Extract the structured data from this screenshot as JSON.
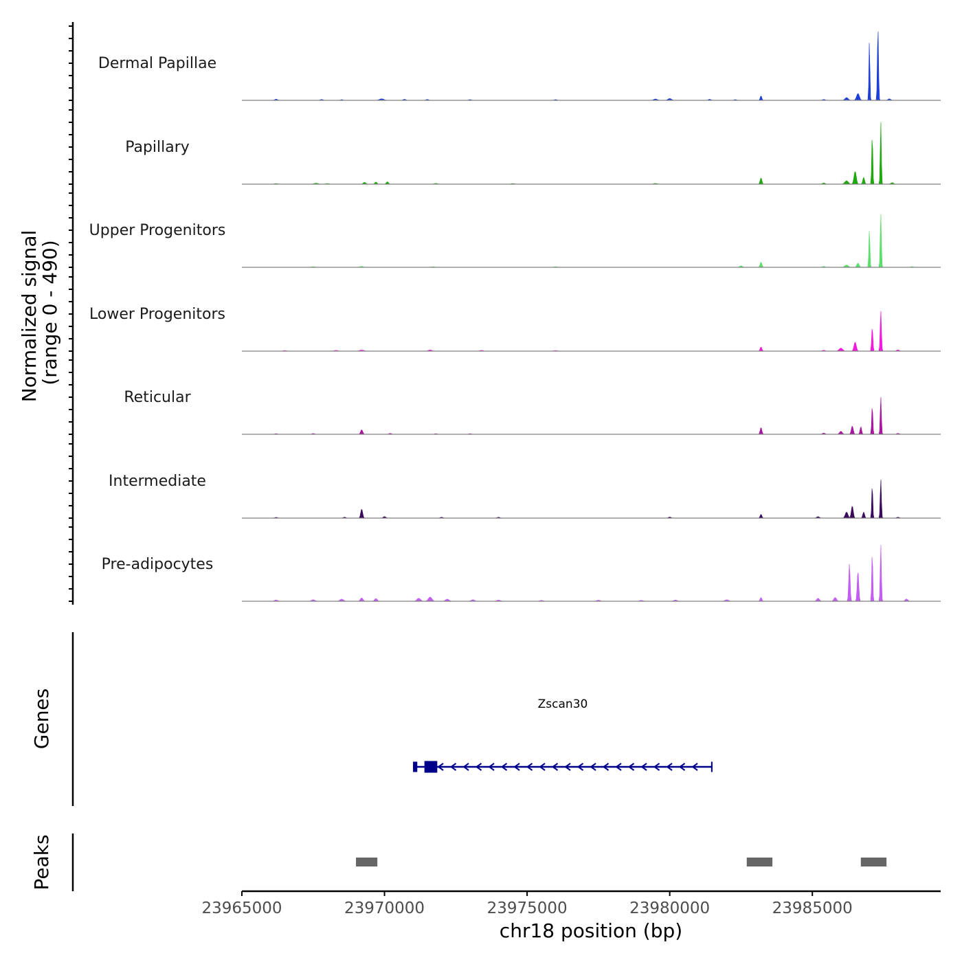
{
  "chart_data": {
    "type": "area",
    "title": "",
    "chromosome": "chr18",
    "xlabel": "chr18 position (bp)",
    "xlim": [
      23965000,
      23989500
    ],
    "x_ticks": [
      23965000,
      23970000,
      23975000,
      23980000,
      23985000
    ],
    "x_tick_labels": [
      "23965000",
      "23970000",
      "23975000",
      "23980000",
      "23985000"
    ],
    "ylabel_line1": "Normalized signal",
    "ylabel_line2": "(range 0 - 490)",
    "ylim": [
      0,
      490
    ],
    "series": [
      {
        "name": "Dermal Papillae",
        "color": "#1f3fd9",
        "peaks": [
          {
            "center": 23966200,
            "height": 8,
            "width": 150
          },
          {
            "center": 23967800,
            "height": 6,
            "width": 150
          },
          {
            "center": 23968500,
            "height": 5,
            "width": 120
          },
          {
            "center": 23969900,
            "height": 10,
            "width": 250
          },
          {
            "center": 23970700,
            "height": 7,
            "width": 150
          },
          {
            "center": 23971500,
            "height": 6,
            "width": 150
          },
          {
            "center": 23973000,
            "height": 5,
            "width": 150
          },
          {
            "center": 23976000,
            "height": 5,
            "width": 150
          },
          {
            "center": 23979500,
            "height": 9,
            "width": 200
          },
          {
            "center": 23980000,
            "height": 12,
            "width": 200
          },
          {
            "center": 23981400,
            "height": 7,
            "width": 150
          },
          {
            "center": 23982300,
            "height": 5,
            "width": 150
          },
          {
            "center": 23983200,
            "height": 30,
            "width": 90
          },
          {
            "center": 23985400,
            "height": 6,
            "width": 150
          },
          {
            "center": 23986200,
            "height": 18,
            "width": 180
          },
          {
            "center": 23986600,
            "height": 45,
            "width": 160
          },
          {
            "center": 23987000,
            "height": 400,
            "width": 55
          },
          {
            "center": 23987300,
            "height": 490,
            "width": 65
          },
          {
            "center": 23987700,
            "height": 10,
            "width": 150
          }
        ]
      },
      {
        "name": "Papillary",
        "color": "#1fa80f",
        "peaks": [
          {
            "center": 23966200,
            "height": 4,
            "width": 200
          },
          {
            "center": 23967600,
            "height": 6,
            "width": 250
          },
          {
            "center": 23968000,
            "height": 4,
            "width": 200
          },
          {
            "center": 23969300,
            "height": 12,
            "width": 150
          },
          {
            "center": 23969700,
            "height": 14,
            "width": 120
          },
          {
            "center": 23970100,
            "height": 16,
            "width": 120
          },
          {
            "center": 23971800,
            "height": 5,
            "width": 200
          },
          {
            "center": 23974500,
            "height": 4,
            "width": 200
          },
          {
            "center": 23979500,
            "height": 5,
            "width": 200
          },
          {
            "center": 23983200,
            "height": 42,
            "width": 100
          },
          {
            "center": 23985400,
            "height": 8,
            "width": 150
          },
          {
            "center": 23986200,
            "height": 22,
            "width": 200
          },
          {
            "center": 23986500,
            "height": 85,
            "width": 130
          },
          {
            "center": 23986800,
            "height": 45,
            "width": 100
          },
          {
            "center": 23987100,
            "height": 330,
            "width": 60
          },
          {
            "center": 23987400,
            "height": 420,
            "width": 60
          },
          {
            "center": 23987800,
            "height": 10,
            "width": 150
          }
        ]
      },
      {
        "name": "Upper Progenitors",
        "color": "#5dde6b",
        "peaks": [
          {
            "center": 23967500,
            "height": 4,
            "width": 200
          },
          {
            "center": 23969200,
            "height": 6,
            "width": 200
          },
          {
            "center": 23971700,
            "height": 4,
            "width": 200
          },
          {
            "center": 23976000,
            "height": 4,
            "width": 200
          },
          {
            "center": 23982500,
            "height": 10,
            "width": 150
          },
          {
            "center": 23983200,
            "height": 35,
            "width": 100
          },
          {
            "center": 23985400,
            "height": 6,
            "width": 150
          },
          {
            "center": 23986200,
            "height": 15,
            "width": 200
          },
          {
            "center": 23986600,
            "height": 28,
            "width": 130
          },
          {
            "center": 23987000,
            "height": 250,
            "width": 60
          },
          {
            "center": 23987400,
            "height": 360,
            "width": 65
          },
          {
            "center": 23988500,
            "height": 5,
            "width": 150
          }
        ]
      },
      {
        "name": "Lower Progenitors",
        "color": "#f21bdc",
        "peaks": [
          {
            "center": 23966500,
            "height": 4,
            "width": 200
          },
          {
            "center": 23968300,
            "height": 5,
            "width": 200
          },
          {
            "center": 23969200,
            "height": 7,
            "width": 250
          },
          {
            "center": 23971600,
            "height": 8,
            "width": 200
          },
          {
            "center": 23973400,
            "height": 5,
            "width": 200
          },
          {
            "center": 23976000,
            "height": 4,
            "width": 200
          },
          {
            "center": 23983200,
            "height": 28,
            "width": 100
          },
          {
            "center": 23985400,
            "height": 6,
            "width": 150
          },
          {
            "center": 23986000,
            "height": 20,
            "width": 200
          },
          {
            "center": 23986500,
            "height": 60,
            "width": 130
          },
          {
            "center": 23987100,
            "height": 160,
            "width": 70
          },
          {
            "center": 23987400,
            "height": 270,
            "width": 70
          },
          {
            "center": 23988000,
            "height": 8,
            "width": 150
          }
        ]
      },
      {
        "name": "Reticular",
        "color": "#a8169f",
        "peaks": [
          {
            "center": 23966200,
            "height": 4,
            "width": 150
          },
          {
            "center": 23967500,
            "height": 5,
            "width": 150
          },
          {
            "center": 23969200,
            "height": 30,
            "width": 120
          },
          {
            "center": 23970200,
            "height": 6,
            "width": 150
          },
          {
            "center": 23971800,
            "height": 4,
            "width": 150
          },
          {
            "center": 23973000,
            "height": 4,
            "width": 150
          },
          {
            "center": 23983200,
            "height": 45,
            "width": 100
          },
          {
            "center": 23985400,
            "height": 8,
            "width": 150
          },
          {
            "center": 23986000,
            "height": 20,
            "width": 150
          },
          {
            "center": 23986400,
            "height": 55,
            "width": 110
          },
          {
            "center": 23986700,
            "height": 50,
            "width": 90
          },
          {
            "center": 23987100,
            "height": 190,
            "width": 65
          },
          {
            "center": 23987400,
            "height": 250,
            "width": 65
          },
          {
            "center": 23988000,
            "height": 6,
            "width": 150
          }
        ]
      },
      {
        "name": "Intermediate",
        "color": "#3a0a5c",
        "peaks": [
          {
            "center": 23966200,
            "height": 5,
            "width": 150
          },
          {
            "center": 23968600,
            "height": 6,
            "width": 150
          },
          {
            "center": 23969200,
            "height": 60,
            "width": 110
          },
          {
            "center": 23970000,
            "height": 10,
            "width": 150
          },
          {
            "center": 23972000,
            "height": 6,
            "width": 150
          },
          {
            "center": 23974000,
            "height": 6,
            "width": 150
          },
          {
            "center": 23980000,
            "height": 7,
            "width": 150
          },
          {
            "center": 23983200,
            "height": 25,
            "width": 100
          },
          {
            "center": 23985200,
            "height": 10,
            "width": 150
          },
          {
            "center": 23986200,
            "height": 40,
            "width": 150
          },
          {
            "center": 23986400,
            "height": 80,
            "width": 110
          },
          {
            "center": 23986800,
            "height": 40,
            "width": 100
          },
          {
            "center": 23987100,
            "height": 220,
            "width": 60
          },
          {
            "center": 23987400,
            "height": 260,
            "width": 65
          },
          {
            "center": 23988000,
            "height": 6,
            "width": 150
          }
        ]
      },
      {
        "name": "Pre-adipocytes",
        "color": "#c25ef0",
        "peaks": [
          {
            "center": 23966200,
            "height": 8,
            "width": 180
          },
          {
            "center": 23967500,
            "height": 10,
            "width": 200
          },
          {
            "center": 23968500,
            "height": 14,
            "width": 200
          },
          {
            "center": 23969200,
            "height": 22,
            "width": 150
          },
          {
            "center": 23969700,
            "height": 18,
            "width": 150
          },
          {
            "center": 23971200,
            "height": 20,
            "width": 200
          },
          {
            "center": 23971600,
            "height": 28,
            "width": 200
          },
          {
            "center": 23972200,
            "height": 14,
            "width": 200
          },
          {
            "center": 23973100,
            "height": 10,
            "width": 200
          },
          {
            "center": 23974000,
            "height": 8,
            "width": 200
          },
          {
            "center": 23975500,
            "height": 6,
            "width": 200
          },
          {
            "center": 23977500,
            "height": 7,
            "width": 200
          },
          {
            "center": 23979000,
            "height": 6,
            "width": 200
          },
          {
            "center": 23980200,
            "height": 8,
            "width": 200
          },
          {
            "center": 23982000,
            "height": 10,
            "width": 200
          },
          {
            "center": 23983200,
            "height": 25,
            "width": 100
          },
          {
            "center": 23985200,
            "height": 20,
            "width": 150
          },
          {
            "center": 23985800,
            "height": 25,
            "width": 150
          },
          {
            "center": 23986300,
            "height": 250,
            "width": 80
          },
          {
            "center": 23986600,
            "height": 200,
            "width": 90
          },
          {
            "center": 23987100,
            "height": 330,
            "width": 60
          },
          {
            "center": 23987400,
            "height": 380,
            "width": 65
          },
          {
            "center": 23988300,
            "height": 15,
            "width": 150
          }
        ]
      }
    ],
    "genes": {
      "label": "Genes",
      "items": [
        {
          "name": "Zscan30",
          "start": 23971000,
          "end": 23981500,
          "strand": "-",
          "color": "#00008b",
          "exons": [
            [
              23971000,
              23971150
            ],
            [
              23971400,
              23971850
            ],
            [
              23981450,
              23981500
            ]
          ]
        }
      ]
    },
    "peaks_track": {
      "label": "Peaks",
      "color": "#666666",
      "regions": [
        [
          23969000,
          23969750
        ],
        [
          23982700,
          23983600
        ],
        [
          23986700,
          23987600
        ]
      ]
    }
  }
}
